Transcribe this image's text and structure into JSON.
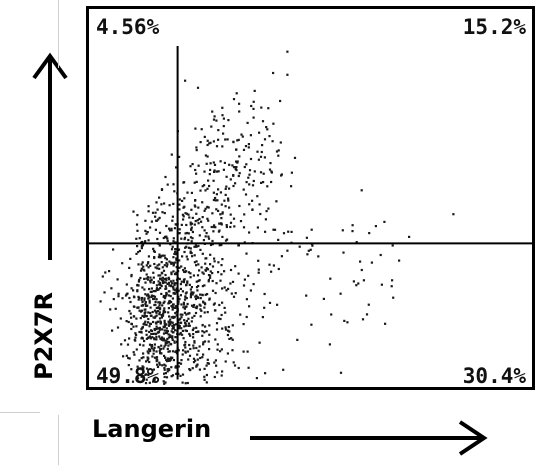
{
  "chart_data": {
    "type": "scatter",
    "title": "",
    "xlabel": "Langerin",
    "ylabel": "P2X7R",
    "quadrants": {
      "upper_left": "4.56%",
      "upper_right": "15.2%",
      "lower_left": "49.8%",
      "lower_right": "30.4%"
    },
    "gates": {
      "x": 0.2,
      "y": 0.38
    },
    "xlim": [
      0,
      1
    ],
    "ylim": [
      0,
      1
    ],
    "grid": false,
    "legend": "none"
  },
  "colors": {
    "points": "#1a1a1a",
    "frame": "#000000",
    "gate": "#000000"
  }
}
